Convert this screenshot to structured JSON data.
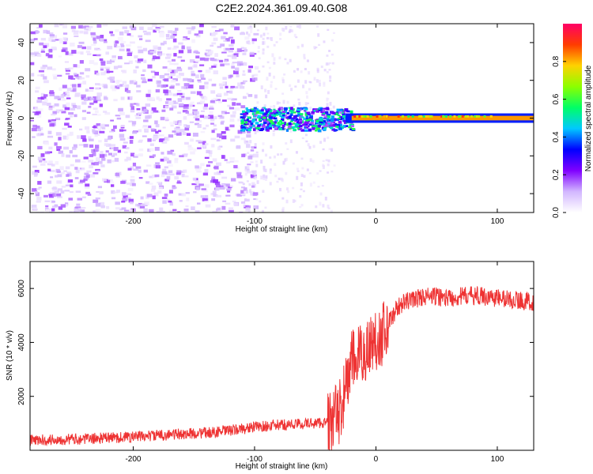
{
  "page": {
    "title": "C2E2.2024.361.09.40.G08"
  },
  "chart_data": [
    {
      "type": "heatmap",
      "title": "C2E2.2024.361.09.40.G08",
      "xlabel": "Height of straight line (km)",
      "ylabel": "Frequency (Hz)",
      "xlim": [
        -285,
        130
      ],
      "ylim": [
        -50,
        50
      ],
      "xticks": [
        -200,
        -100,
        0,
        100
      ],
      "yticks": [
        -40,
        -20,
        0,
        20,
        40
      ],
      "colorbar": {
        "label": "Normalized spectral amplitude",
        "range": [
          0,
          1
        ],
        "ticks": [
          "0.0",
          "0.2",
          "0.4",
          "0.6",
          "0.8"
        ],
        "colors": [
          "#ffffff",
          "#d2b6ff",
          "#8000ff",
          "#0000ff",
          "#00c8ff",
          "#00ff66",
          "#8cff00",
          "#ffd200",
          "#ff3c00",
          "#ff0066"
        ]
      },
      "regions": [
        {
          "x": [
            -285,
            -110
          ],
          "description_level": 0.05
        },
        {
          "x": [
            -110,
            -20
          ],
          "description_level": 0.35
        },
        {
          "x": [
            -20,
            130
          ],
          "description_level": 0.8
        }
      ],
      "signal_line_frequency": 0
    },
    {
      "type": "line",
      "xlabel": "Height of straight line (km)",
      "ylabel": "SNR (10 * v/v)",
      "xlim": [
        -285,
        130
      ],
      "ylim": [
        0,
        7000
      ],
      "xticks": [
        -200,
        -100,
        0,
        100
      ],
      "yticks": [
        2000,
        4000,
        6000
      ],
      "color": "#ee3333",
      "x": [
        -285,
        -260,
        -240,
        -220,
        -200,
        -180,
        -160,
        -140,
        -120,
        -100,
        -80,
        -60,
        -40,
        -30,
        -25,
        -20,
        -15,
        -10,
        -5,
        0,
        5,
        10,
        15,
        20,
        30,
        40,
        50,
        60,
        70,
        80,
        90,
        100,
        110,
        120,
        130
      ],
      "y": [
        280,
        320,
        340,
        380,
        420,
        470,
        520,
        560,
        650,
        780,
        850,
        900,
        950,
        1400,
        2300,
        3300,
        3400,
        3600,
        3900,
        4100,
        4300,
        4700,
        5100,
        5400,
        5600,
        5700,
        5700,
        5650,
        5700,
        5750,
        5700,
        5650,
        5600,
        5550,
        5500
      ]
    }
  ]
}
